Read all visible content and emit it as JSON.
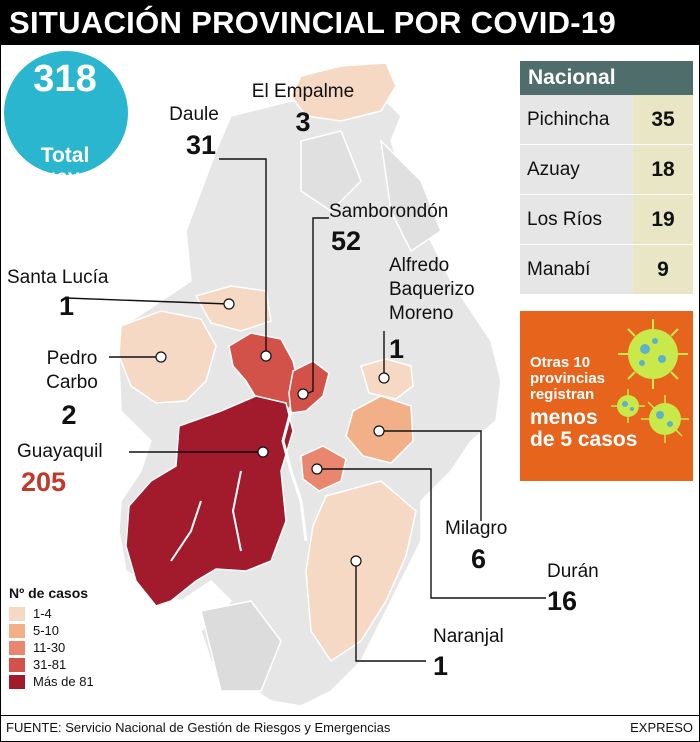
{
  "title": "SITUACIÓN PROVINCIAL POR COVID-19",
  "total": {
    "value": "318",
    "label_line1": "Total",
    "label_line2": "Guayas"
  },
  "cantons": {
    "el_empalme": {
      "name": "El Empalme",
      "cases": "3"
    },
    "daule": {
      "name": "Daule",
      "cases": "31"
    },
    "samborondon": {
      "name": "Samborondón",
      "cases": "52"
    },
    "santa_lucia": {
      "name": "Santa Lucía",
      "cases": "1"
    },
    "alfredo": {
      "name_line1": "Alfredo",
      "name_line2": "Baquerizo",
      "name_line3": "Moreno",
      "cases": "1"
    },
    "pedro_carbo": {
      "name_line1": "Pedro",
      "name_line2": "Carbo",
      "cases": "2"
    },
    "guayaquil": {
      "name": "Guayaquil",
      "cases": "205"
    },
    "milagro": {
      "name": "Milagro",
      "cases": "6"
    },
    "duran": {
      "name": "Durán",
      "cases": "16"
    },
    "naranjal": {
      "name": "Naranjal",
      "cases": "1"
    }
  },
  "nacional": {
    "header": "Nacional",
    "rows": [
      {
        "name": "Pichincha",
        "value": "35"
      },
      {
        "name": "Azuay",
        "value": "18"
      },
      {
        "name": "Los Ríos",
        "value": "19"
      },
      {
        "name": "Manabí",
        "value": "9"
      }
    ]
  },
  "otras": {
    "line1": "Otras 10",
    "line2": "provincias",
    "line3": "registran",
    "line4": "menos",
    "line5": "de 5 casos",
    "icon": "virus-icon"
  },
  "legend": {
    "title": "Nº de casos",
    "items": [
      {
        "label": "1-4",
        "color": "#f6d9c4"
      },
      {
        "label": "5-10",
        "color": "#f2b089"
      },
      {
        "label": "11-30",
        "color": "#e8866f"
      },
      {
        "label": "31-81",
        "color": "#d2524a"
      },
      {
        "label": "Más de 81",
        "color": "#a11b2d"
      }
    ]
  },
  "colors": {
    "title_bg": "#000000",
    "circle": "#2bb6cf",
    "nacional_header": "#4f6d6b",
    "otras_bg": "#e7641d",
    "guayaquil_number": "#c0392b",
    "base_land": "#e6e6e6"
  },
  "footer": {
    "source": "FUENTE: Servicio Nacional de Gestión de Riesgos y Emergencias",
    "brand": "EXPRESO"
  }
}
